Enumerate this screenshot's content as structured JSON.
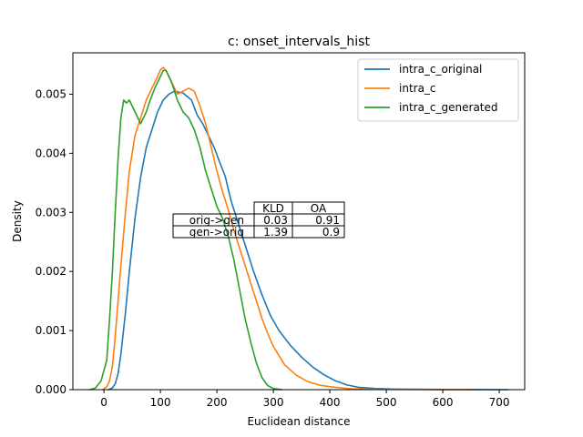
{
  "chart_data": {
    "type": "line",
    "title": "c: onset_intervals_hist",
    "xlabel": "Euclidean distance",
    "ylabel": "Density",
    "xlim": [
      -55,
      745
    ],
    "ylim": [
      0,
      0.0057
    ],
    "xticks": [
      0,
      100,
      200,
      300,
      400,
      500,
      600,
      700
    ],
    "xtick_labels": [
      "0",
      "100",
      "200",
      "300",
      "400",
      "500",
      "600",
      "700"
    ],
    "yticks": [
      0,
      0.001,
      0.002,
      0.003,
      0.004,
      0.005
    ],
    "ytick_labels": [
      "0.000",
      "0.001",
      "0.002",
      "0.003",
      "0.004",
      "0.005"
    ],
    "grid": false,
    "legend_position": "upper right",
    "series": [
      {
        "name": "intra_c_original",
        "color": "#1f77b4",
        "x": [
          8,
          15,
          20,
          25,
          30,
          38,
          45,
          55,
          65,
          75,
          85,
          95,
          105,
          115,
          125,
          140,
          155,
          165,
          175,
          185,
          195,
          205,
          215,
          225,
          235,
          245,
          255,
          265,
          280,
          295,
          310,
          330,
          350,
          370,
          390,
          410,
          430,
          450,
          480,
          520,
          600,
          650,
          715
        ],
        "y": [
          0,
          3e-05,
          0.0001,
          0.00027,
          0.0006,
          0.0013,
          0.002,
          0.0029,
          0.0036,
          0.0041,
          0.0044,
          0.0047,
          0.0049,
          0.005,
          0.00505,
          0.00502,
          0.0049,
          0.00465,
          0.0045,
          0.0043,
          0.0041,
          0.00385,
          0.0036,
          0.0032,
          0.0029,
          0.0026,
          0.0023,
          0.002,
          0.0016,
          0.00125,
          0.001,
          0.00075,
          0.00055,
          0.00038,
          0.00025,
          0.00015,
          8e-05,
          4e-05,
          2e-05,
          1e-05,
          3e-06,
          1e-06,
          0
        ]
      },
      {
        "name": "intra_c",
        "color": "#ff7f0e",
        "x": [
          -2,
          5,
          10,
          15,
          20,
          25,
          30,
          38,
          45,
          55,
          65,
          75,
          85,
          95,
          100,
          105,
          110,
          120,
          130,
          140,
          150,
          160,
          170,
          180,
          190,
          200,
          210,
          220,
          230,
          240,
          250,
          260,
          270,
          280,
          290,
          300,
          320,
          340,
          360,
          380,
          400,
          420,
          440,
          470,
          520,
          600,
          650
        ],
        "y": [
          0,
          5e-05,
          0.00015,
          0.0004,
          0.0009,
          0.0015,
          0.0021,
          0.003,
          0.0037,
          0.0043,
          0.0046,
          0.0049,
          0.0051,
          0.0053,
          0.00541,
          0.00545,
          0.0054,
          0.0052,
          0.005,
          0.00505,
          0.0051,
          0.00505,
          0.0048,
          0.0045,
          0.0041,
          0.0037,
          0.00335,
          0.00305,
          0.0027,
          0.0024,
          0.0021,
          0.0018,
          0.0015,
          0.0012,
          0.00095,
          0.00073,
          0.00042,
          0.00025,
          0.00014,
          8e-05,
          5e-05,
          3e-05,
          1.5e-05,
          8e-06,
          4e-06,
          1e-06,
          0
        ]
      },
      {
        "name": "intra_c_generated",
        "color": "#2ca02c",
        "x": [
          -25,
          -15,
          -5,
          5,
          10,
          15,
          20,
          25,
          30,
          35,
          40,
          45,
          50,
          55,
          60,
          65,
          70,
          75,
          80,
          90,
          100,
          105,
          110,
          115,
          120,
          125,
          130,
          140,
          150,
          160,
          170,
          180,
          190,
          200,
          210,
          220,
          230,
          240,
          250,
          260,
          270,
          280,
          290,
          300,
          315
        ],
        "y": [
          0,
          3e-05,
          0.00015,
          0.0005,
          0.0012,
          0.002,
          0.003,
          0.0039,
          0.0046,
          0.0049,
          0.00485,
          0.0049,
          0.0048,
          0.0047,
          0.0046,
          0.0045,
          0.0046,
          0.0047,
          0.00485,
          0.0051,
          0.0053,
          0.0054,
          0.0054,
          0.0053,
          0.0052,
          0.00505,
          0.0049,
          0.0047,
          0.0046,
          0.0044,
          0.0041,
          0.0037,
          0.0034,
          0.0031,
          0.0029,
          0.0026,
          0.0022,
          0.0017,
          0.0012,
          0.0008,
          0.00045,
          0.0002,
          7e-05,
          2e-05,
          0
        ]
      }
    ],
    "table": {
      "col_labels": [
        "KLD",
        "OA"
      ],
      "rows": [
        {
          "label": "orig->gen",
          "values": [
            "0.03",
            "0.91"
          ]
        },
        {
          "label": "gen->orig",
          "values": [
            "1.39",
            "0.9"
          ]
        }
      ]
    }
  }
}
